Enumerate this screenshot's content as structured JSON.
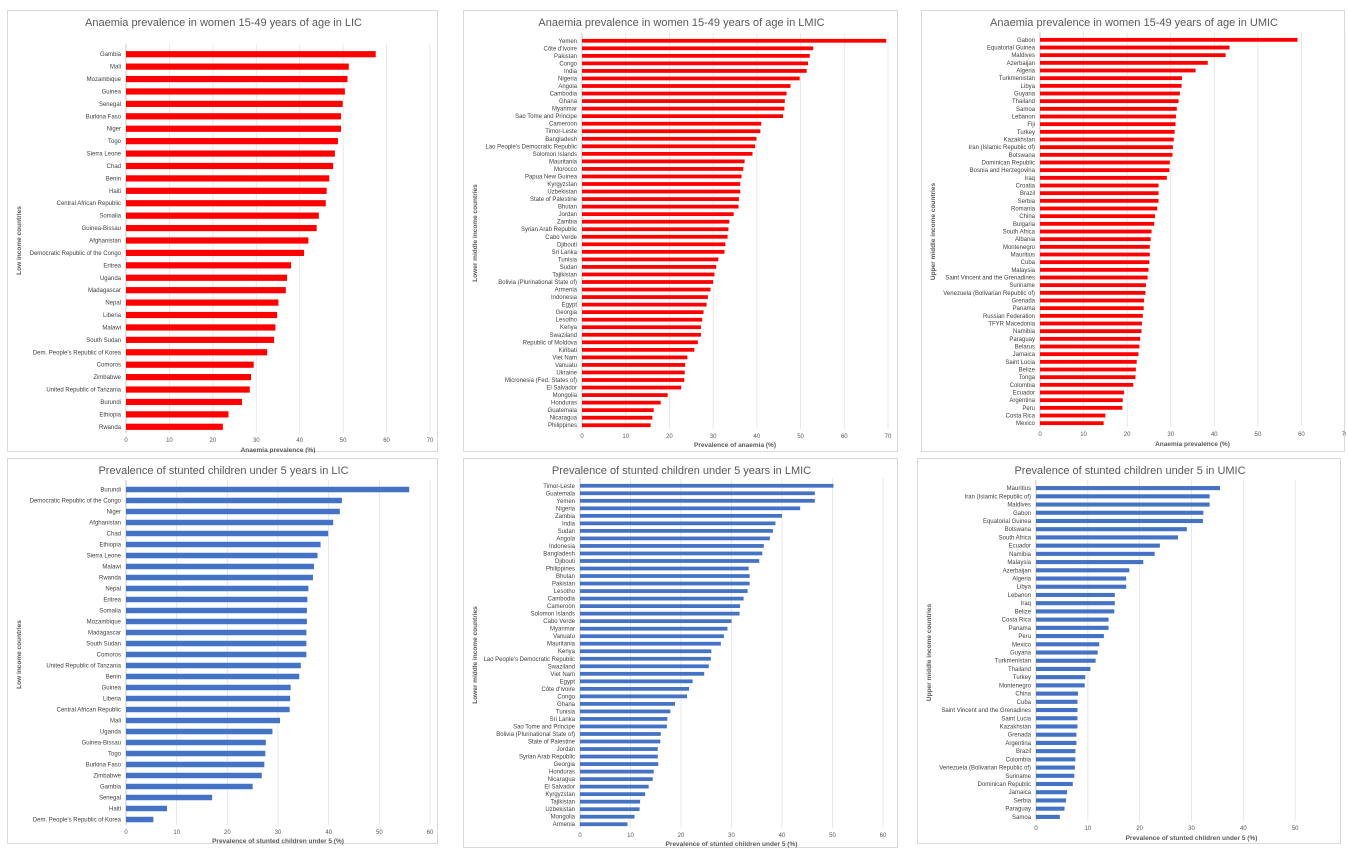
{
  "chart_data": [
    {
      "type": "bar",
      "orientation": "horizontal",
      "title": "Anaemia prevalence in women 15-49 years of age in LIC",
      "xlabel": "Anaemia prevalence (%)",
      "ylabel": "Low income countries",
      "xlim": [
        0,
        70
      ],
      "xticks": [
        "0",
        "10",
        "20",
        "30",
        "40",
        "50",
        "60",
        "70"
      ],
      "grid": true,
      "color": "#ff0000",
      "categories": [
        "Gambia",
        "Mali",
        "Mozambique",
        "Guinea",
        "Senegal",
        "Burkina Faso",
        "Niger",
        "Togo",
        "Sierra Leone",
        "Chad",
        "Benin",
        "Haiti",
        "Central African Republic",
        "Somalia",
        "Guinea-Bissau",
        "Afghanistan",
        "Democratic Republic of the Congo",
        "Eritrea",
        "Uganda",
        "Madagascar",
        "Nepal",
        "Liberia",
        "Malawi",
        "South Sudan",
        "Dem. People's Republic of Korea",
        "Comoros",
        "Zimbabwe",
        "United Republic of Tanzania",
        "Burundi",
        "Ethiopia",
        "Rwanda"
      ],
      "values": [
        57.5,
        51.3,
        51.0,
        50.4,
        49.9,
        49.5,
        49.5,
        48.8,
        48.1,
        47.7,
        46.8,
        46.2,
        46.0,
        44.4,
        43.9,
        42.0,
        41.0,
        38.0,
        37.1,
        36.8,
        35.1,
        34.8,
        34.4,
        34.1,
        32.5,
        29.4,
        28.8,
        28.5,
        26.7,
        23.6,
        22.3
      ]
    },
    {
      "type": "bar",
      "orientation": "horizontal",
      "title": "Anaemia prevalence in women 15-49 years of age in LMIC",
      "xlabel": "Prevalence of anaemia (%)",
      "ylabel": "Lower middle income countries",
      "xlim": [
        0,
        70
      ],
      "xticks": [
        "0",
        "10",
        "20",
        "30",
        "40",
        "50",
        "60",
        "70"
      ],
      "grid": true,
      "color": "#ff0000",
      "categories": [
        "Yemen",
        "Côte d'Ivoire",
        "Pakistan",
        "Congo",
        "India",
        "Nigeria",
        "Angola",
        "Cambodia",
        "Ghana",
        "Myanmar",
        "Sao Tome and Principe",
        "Cameroon",
        "Timor-Leste",
        "Bangladesh",
        "Lao People's Democratic Republic",
        "Solomon Islands",
        "Mauritania",
        "Morocco",
        "Papua New Guinea",
        "Kyrgyzstan",
        "Uzbekistan",
        "State of Palestine",
        "Bhutan",
        "Jordan",
        "Zambia",
        "Syrian Arab Republic",
        "Cabo Verde",
        "Djibouti",
        "Sri Lanka",
        "Tunisia",
        "Sudan",
        "Tajikistan",
        "Bolivia (Plurinational State of)",
        "Armenia",
        "Indonesia",
        "Egypt",
        "Georgia",
        "Lesotho",
        "Kenya",
        "Swaziland",
        "Republic of Moldova",
        "Kiribati",
        "Viet Nam",
        "Vanuatu",
        "Ukraine",
        "Micronesia (Fed. States of)",
        "El Salvador",
        "Mongolia",
        "Honduras",
        "Guatemala",
        "Nicaragua",
        "Philippines"
      ],
      "values": [
        69.6,
        52.9,
        52.1,
        51.7,
        51.4,
        49.8,
        47.7,
        46.8,
        46.4,
        46.3,
        46.0,
        41.0,
        40.8,
        39.9,
        39.6,
        39.0,
        37.2,
        36.9,
        36.5,
        36.2,
        36.2,
        35.9,
        35.8,
        34.7,
        33.7,
        33.5,
        33.3,
        32.8,
        32.6,
        31.2,
        30.7,
        30.3,
        30.0,
        29.4,
        28.8,
        28.5,
        27.8,
        27.5,
        27.2,
        27.2,
        26.5,
        25.7,
        24.1,
        23.6,
        23.5,
        23.4,
        22.7,
        19.6,
        18.0,
        16.4,
        16.1,
        15.7
      ]
    },
    {
      "type": "bar",
      "orientation": "horizontal",
      "title": "Anaemia prevalence in women 15-49 years of age in UMIC",
      "xlabel": "Anaemia prevalence (%)",
      "ylabel": "Upper middle income countries",
      "xlim": [
        0,
        70
      ],
      "xticks": [
        "0",
        "10",
        "20",
        "30",
        "40",
        "50",
        "60",
        "70"
      ],
      "grid": true,
      "color": "#ff0000",
      "categories": [
        "Gabon",
        "Equatorial Guinea",
        "Maldives",
        "Azerbaijan",
        "Algeria",
        "Turkmenistan",
        "Libya",
        "Guyana",
        "Thailand",
        "Samoa",
        "Lebanon",
        "Fiji",
        "Turkey",
        "Kazakhstan",
        "Iran (Islamic Republic of)",
        "Botswana",
        "Dominican Republic",
        "Bosnia and Herzegovina",
        "Iraq",
        "Croatia",
        "Brazil",
        "Serbia",
        "Romania",
        "China",
        "Bulgaria",
        "South Africa",
        "Albania",
        "Montenegro",
        "Mauritius",
        "Cuba",
        "Malaysia",
        "Saint Vincent and the Grenadines",
        "Suriname",
        "Venezuela (Bolivarian Republic of)",
        "Grenada",
        "Panama",
        "Russian Federation",
        "TFYR Macedonia",
        "Namibia",
        "Paraguay",
        "Belarus",
        "Jamaica",
        "Saint Lucia",
        "Belize",
        "Tonga",
        "Colombia",
        "Ecuador",
        "Argentina",
        "Peru",
        "Costa Rica",
        "Mexico"
      ],
      "values": [
        59.1,
        43.5,
        42.6,
        38.5,
        35.7,
        32.6,
        32.5,
        32.1,
        31.8,
        31.4,
        31.2,
        31.1,
        30.9,
        30.7,
        30.5,
        30.4,
        29.8,
        29.7,
        29.1,
        27.2,
        27.2,
        27.2,
        26.9,
        26.4,
        26.2,
        25.6,
        25.4,
        25.2,
        25.2,
        25.1,
        24.9,
        24.7,
        24.3,
        24.2,
        23.9,
        23.8,
        23.6,
        23.4,
        23.3,
        23.0,
        22.8,
        22.6,
        22.2,
        22.0,
        21.9,
        21.4,
        19.3,
        19.0,
        18.9,
        15.0,
        14.6
      ]
    },
    {
      "type": "bar",
      "orientation": "horizontal",
      "title": "Prevalence of stunted children under 5 years in LIC",
      "xlabel": "Prevalence of stunted children under 5 (%)",
      "ylabel": "Low income countries",
      "xlim": [
        0,
        60
      ],
      "xticks": [
        "0",
        "10",
        "20",
        "30",
        "40",
        "50",
        "60"
      ],
      "grid": true,
      "color": "#4472c4",
      "categories": [
        "Burundi",
        "Democratic Republic of the Congo",
        "Niger",
        "Afghanistan",
        "Chad",
        "Ethiopia",
        "Sierra Leone",
        "Malawi",
        "Rwanda",
        "Nepal",
        "Eritrea",
        "Somalia",
        "Mozambique",
        "Madagascar",
        "South Sudan",
        "Comoros",
        "United Republic of Tanzania",
        "Benin",
        "Guinea",
        "Liberia",
        "Central African Republic",
        "Mali",
        "Uganda",
        "Guinea-Bissau",
        "Togo",
        "Burkina Faso",
        "Zimbabwe",
        "Gambia",
        "Senegal",
        "Haiti",
        "Dem. People's Republic of Korea"
      ],
      "values": [
        55.9,
        42.6,
        42.2,
        40.9,
        39.9,
        38.4,
        37.8,
        37.1,
        36.9,
        36.0,
        35.8,
        35.7,
        35.7,
        35.6,
        35.6,
        35.6,
        34.5,
        34.2,
        32.5,
        32.4,
        32.3,
        30.4,
        28.9,
        27.6,
        27.5,
        27.3,
        26.8,
        25.0,
        17.0,
        8.1,
        5.4
      ]
    },
    {
      "type": "bar",
      "orientation": "horizontal",
      "title": "Prevalence of stunted children under 5 years in LMIC",
      "xlabel": "Prevalence of stunted children under 5 (%)",
      "ylabel": "Lower middle income countries",
      "xlim": [
        0,
        60
      ],
      "xticks": [
        "0",
        "10",
        "20",
        "30",
        "40",
        "50",
        "60"
      ],
      "grid": true,
      "color": "#4472c4",
      "categories": [
        "Timor-Leste",
        "Guatemala",
        "Yemen",
        "Nigeria",
        "Zambia",
        "India",
        "Sudan",
        "Angola",
        "Indonesia",
        "Bangladesh",
        "Djibouti",
        "Philippines",
        "Bhutan",
        "Pakistan",
        "Lesotho",
        "Cambodia",
        "Cameroon",
        "Solomon Islands",
        "Cabo Verde",
        "Myanmar",
        "Vanuatu",
        "Mauritania",
        "Kenya",
        "Lao People's Democratic Republic",
        "Swaziland",
        "Viet Nam",
        "Egypt",
        "Côte d'Ivoire",
        "Congo",
        "Ghana",
        "Tunisia",
        "Sri Lanka",
        "Sao Tome and Principe",
        "Bolivia (Plurinational State of)",
        "State of Palestine",
        "Jordan",
        "Syrian Arab Republic",
        "Georgia",
        "Honduras",
        "Nicaragua",
        "El Salvador",
        "Kyrgyzstan",
        "Tajikistan",
        "Uzbekistan",
        "Mongolia",
        "Armenia"
      ],
      "values": [
        50.2,
        46.5,
        46.5,
        43.6,
        40.0,
        38.7,
        38.2,
        37.6,
        36.4,
        36.1,
        35.5,
        33.4,
        33.6,
        33.6,
        33.2,
        32.4,
        31.7,
        31.6,
        30.0,
        29.2,
        28.5,
        27.9,
        26.0,
        25.9,
        25.5,
        24.6,
        22.3,
        21.6,
        21.2,
        18.8,
        17.9,
        17.3,
        17.2,
        16.0,
        15.9,
        15.4,
        15.4,
        15.5,
        14.6,
        14.4,
        13.6,
        12.9,
        11.9,
        11.8,
        10.8,
        9.4
      ]
    },
    {
      "type": "bar",
      "orientation": "horizontal",
      "title": "Prevalence of stunted children under 5 in UMIC",
      "xlabel": "Prevalence of stunted children under 5 (%)",
      "ylabel": "Upper middle income countries",
      "xlim": [
        0,
        60
      ],
      "xticks": [
        "0",
        "10",
        "20",
        "30",
        "40",
        "50",
        "60"
      ],
      "grid": true,
      "color": "#4472c4",
      "categories": [
        "Mauritius",
        "Iran (Islamic Republic of)",
        "Maldives",
        "Gabon",
        "Equatorial Guinea",
        "Botswana",
        "South Africa",
        "Ecuador",
        "Namibia",
        "Malaysia",
        "Azerbaijan",
        "Algeria",
        "Libya",
        "Lebanon",
        "Iraq",
        "Belize",
        "Costa Rica",
        "Panama",
        "Peru",
        "Mexico",
        "Guyana",
        "Turkmenistan",
        "Thailand",
        "Turkey",
        "Montenegro",
        "China",
        "Cuba",
        "Saint Vincent and the Grenadines",
        "Saint Lucia",
        "Kazakhstan",
        "Grenada",
        "Argentina",
        "Brazil",
        "Colombia",
        "Venezuela (Bolivarian Republic of)",
        "Suriname",
        "Dominican Republic",
        "Jamaica",
        "Serbia",
        "Paraguay",
        "Samoa"
      ],
      "values": [
        35.5,
        33.5,
        33.5,
        32.3,
        32.2,
        29.1,
        27.4,
        23.9,
        22.9,
        20.7,
        18.0,
        17.4,
        17.4,
        15.2,
        15.2,
        15.1,
        14.0,
        14.0,
        13.1,
        12.2,
        11.9,
        11.5,
        10.5,
        9.5,
        9.4,
        8.1,
        8.0,
        8.0,
        8.0,
        8.0,
        7.8,
        7.8,
        7.6,
        7.6,
        7.5,
        7.4,
        7.1,
        6.0,
        5.8,
        5.5,
        4.6
      ]
    }
  ]
}
